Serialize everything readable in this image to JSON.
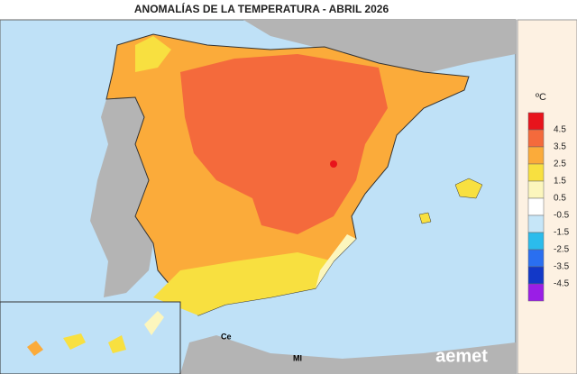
{
  "header": {
    "title": "ANOMALÍAS DE LA TEMPERATURA - ABRIL 2026"
  },
  "legend": {
    "unit": "ºC",
    "labels": [
      "4.5",
      "3.5",
      "2.5",
      "1.5",
      "0.5",
      "-0.5",
      "-1.5",
      "-2.5",
      "-3.5",
      "-4.5"
    ],
    "colors": [
      "#e8141c",
      "#f46a3c",
      "#fbab3a",
      "#f8e040",
      "#fcf6bd",
      "#ffffff",
      "#c6e6f8",
      "#2bbcec",
      "#2a6ff0",
      "#1238c8",
      "#9a1ee6"
    ]
  },
  "map": {
    "labels": [
      "Ce",
      "Ml"
    ],
    "logo": "aemet"
  }
}
